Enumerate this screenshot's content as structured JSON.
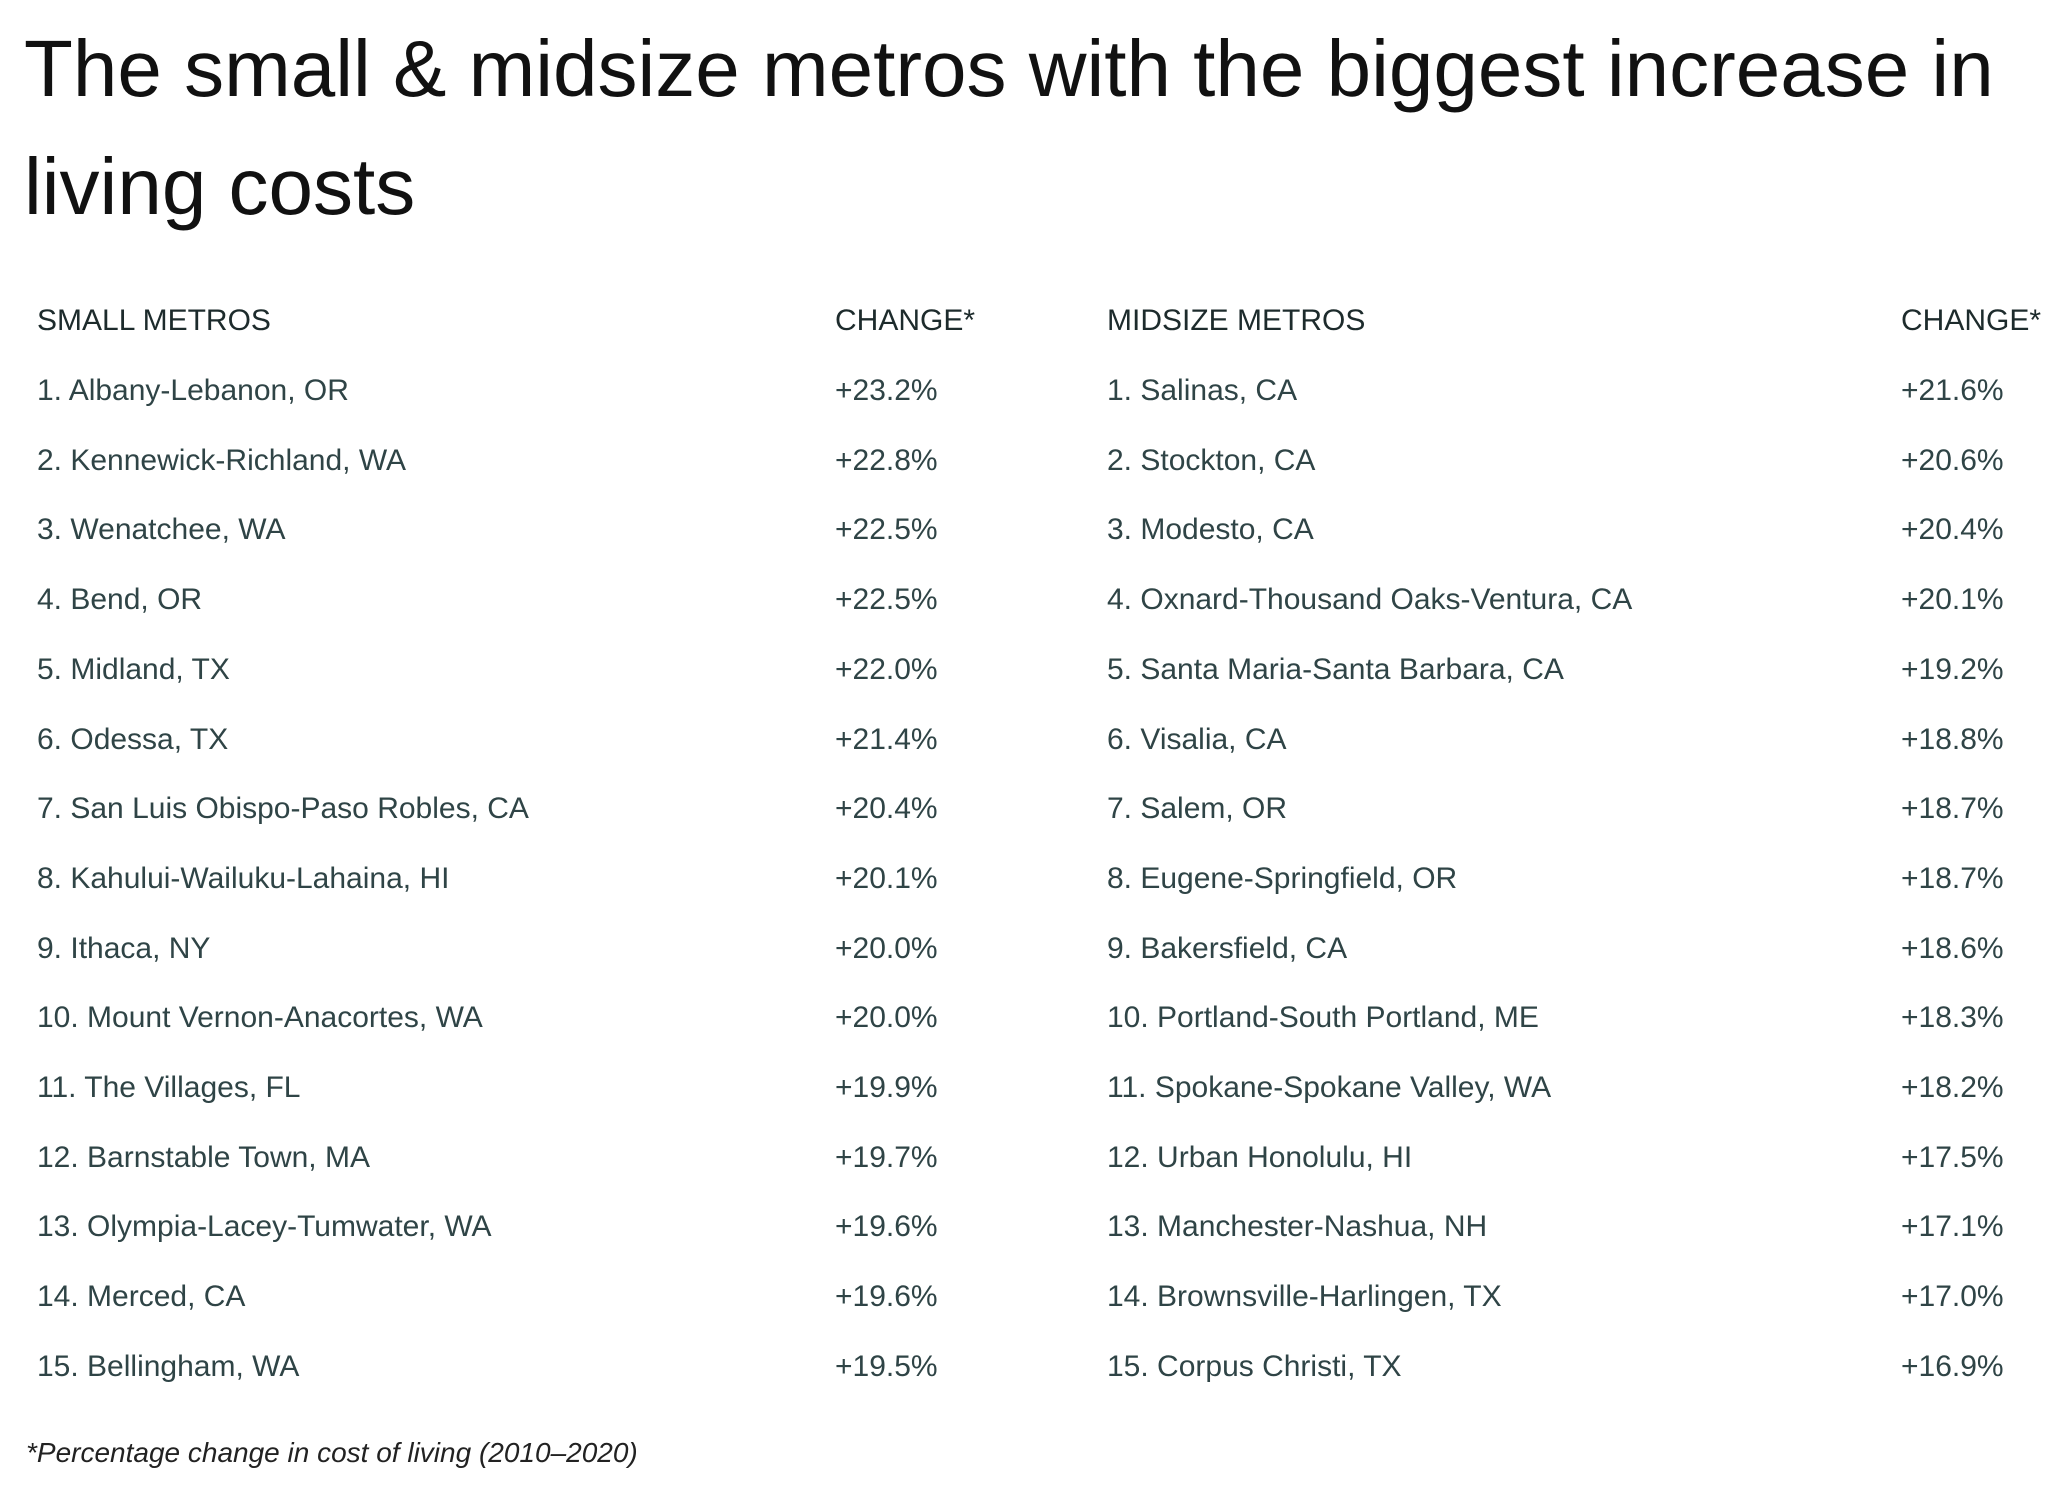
{
  "title": "The small & midsize metros with the biggest increase in living costs",
  "tables": [
    {
      "headers": [
        "SMALL METROS",
        "CHANGE*"
      ],
      "rows": [
        [
          "1. Albany-Lebanon, OR",
          "+23.2%"
        ],
        [
          "2. Kennewick-Richland, WA",
          "+22.8%"
        ],
        [
          "3. Wenatchee, WA",
          "+22.5%"
        ],
        [
          "4. Bend, OR",
          "+22.5%"
        ],
        [
          "5. Midland, TX",
          "+22.0%"
        ],
        [
          "6. Odessa, TX",
          "+21.4%"
        ],
        [
          "7. San Luis Obispo-Paso Robles, CA",
          "+20.4%"
        ],
        [
          "8. Kahului-Wailuku-Lahaina, HI",
          "+20.1%"
        ],
        [
          "9. Ithaca, NY",
          "+20.0%"
        ],
        [
          "10. Mount Vernon-Anacortes, WA",
          "+20.0%"
        ],
        [
          "11. The Villages, FL",
          "+19.9%"
        ],
        [
          "12. Barnstable Town, MA",
          "+19.7%"
        ],
        [
          "13. Olympia-Lacey-Tumwater, WA",
          "+19.6%"
        ],
        [
          "14. Merced, CA",
          "+19.6%"
        ],
        [
          "15. Bellingham, WA",
          "+19.5%"
        ]
      ]
    },
    {
      "headers": [
        "MIDSIZE METROS",
        "CHANGE*"
      ],
      "rows": [
        [
          "1. Salinas, CA",
          "+21.6%"
        ],
        [
          "2. Stockton, CA",
          "+20.6%"
        ],
        [
          "3. Modesto, CA",
          "+20.4%"
        ],
        [
          "4. Oxnard-Thousand Oaks-Ventura, CA",
          "+20.1%"
        ],
        [
          "5. Santa Maria-Santa Barbara, CA",
          "+19.2%"
        ],
        [
          "6. Visalia, CA",
          "+18.8%"
        ],
        [
          "7. Salem, OR",
          "+18.7%"
        ],
        [
          "8. Eugene-Springfield, OR",
          "+18.7%"
        ],
        [
          "9. Bakersfield, CA",
          "+18.6%"
        ],
        [
          "10. Portland-South Portland, ME",
          "+18.3%"
        ],
        [
          "11. Spokane-Spokane Valley, WA",
          "+18.2%"
        ],
        [
          "12. Urban Honolulu, HI",
          "+17.5%"
        ],
        [
          "13. Manchester-Nashua, NH",
          "+17.1%"
        ],
        [
          "14. Brownsville-Harlingen, TX",
          "+17.0%"
        ],
        [
          "15. Corpus Christi, TX",
          "+16.9%"
        ]
      ]
    }
  ],
  "footnote": "*Percentage change in cost of living (2010–2020)"
}
